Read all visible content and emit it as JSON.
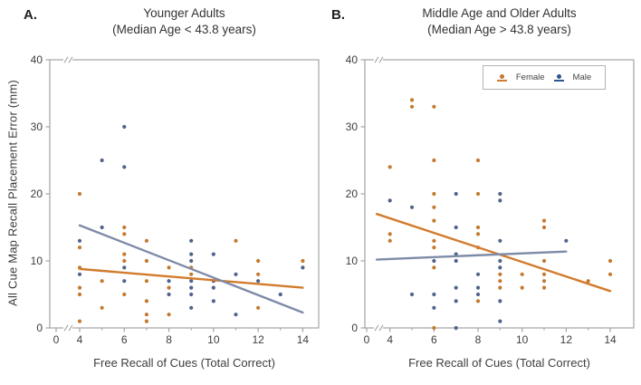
{
  "figure": {
    "ylabel": "All Cue Map Recall Placement Error (mm)",
    "xlabel": "Free Recall of Cues (Total Correct)"
  },
  "chart_data": {
    "type": "scatter",
    "ylabel": "All Cue Map Recall Placement Error (mm)",
    "xlabel": "Free Recall of Cues (Total Correct)",
    "ylim": [
      0,
      40
    ],
    "y_ticks": [
      0,
      10,
      20,
      30,
      40
    ],
    "x_ticks_major": [
      0,
      4,
      6,
      8,
      10,
      12,
      14
    ],
    "x_ticks_minor": [
      5,
      7,
      9,
      11,
      13
    ],
    "axis_break_between_0_and_4": true,
    "colors": {
      "female_point": "#c4792f",
      "female_line": "#d27b2c",
      "male_point": "#51628c",
      "male_line": "#7e8ba8",
      "axis": "#a3a3a3",
      "text": "#3d3d3d"
    },
    "legend": {
      "items": [
        "Female",
        "Male"
      ],
      "position": "top-right of panel B"
    },
    "panels": [
      {
        "id": "A",
        "label": "A.",
        "title_line1": "Younger Adults",
        "title_line2": "(Median Age < 43.8 years)",
        "series": [
          {
            "name": "Female",
            "points": [
              [
                4,
                20
              ],
              [
                4,
                12
              ],
              [
                4,
                9
              ],
              [
                4,
                6
              ],
              [
                4,
                5
              ],
              [
                4,
                1
              ],
              [
                5,
                7
              ],
              [
                5,
                3
              ],
              [
                6,
                15
              ],
              [
                6,
                14
              ],
              [
                6,
                11
              ],
              [
                6,
                10
              ],
              [
                6,
                5
              ],
              [
                7,
                13
              ],
              [
                7,
                10
              ],
              [
                7,
                7
              ],
              [
                7,
                4
              ],
              [
                7,
                2
              ],
              [
                7,
                1
              ],
              [
                8,
                9
              ],
              [
                8,
                6
              ],
              [
                8,
                2
              ],
              [
                9,
                9
              ],
              [
                9,
                8
              ],
              [
                11,
                13
              ],
              [
                12,
                10
              ],
              [
                12,
                8
              ],
              [
                12,
                3
              ],
              [
                14,
                10
              ]
            ],
            "trend": {
              "x1": 4,
              "y1": 8.8,
              "x2": 14,
              "y2": 6.0
            }
          },
          {
            "name": "Male",
            "points": [
              [
                4,
                13
              ],
              [
                4,
                8
              ],
              [
                5,
                25
              ],
              [
                5,
                15
              ],
              [
                6,
                30
              ],
              [
                6,
                24
              ],
              [
                6,
                9
              ],
              [
                6,
                7
              ],
              [
                8,
                7
              ],
              [
                8,
                5
              ],
              [
                9,
                13
              ],
              [
                9,
                11
              ],
              [
                9,
                10
              ],
              [
                9,
                7
              ],
              [
                9,
                6
              ],
              [
                9,
                5
              ],
              [
                9,
                3
              ],
              [
                10,
                11
              ],
              [
                10,
                7
              ],
              [
                10,
                6
              ],
              [
                10,
                4
              ],
              [
                11,
                8
              ],
              [
                11,
                2
              ],
              [
                12,
                7
              ],
              [
                13,
                5
              ],
              [
                14,
                9
              ]
            ],
            "trend": {
              "x1": 4,
              "y1": 15.3,
              "x2": 14,
              "y2": 2.3
            }
          }
        ]
      },
      {
        "id": "B",
        "label": "B.",
        "title_line1": "Middle Age and Older Adults",
        "title_line2": "(Median Age > 43.8 years)",
        "series": [
          {
            "name": "Female",
            "points": [
              [
                4,
                24
              ],
              [
                4,
                14
              ],
              [
                4,
                13
              ],
              [
                5,
                34
              ],
              [
                5,
                33
              ],
              [
                6,
                33
              ],
              [
                6,
                25
              ],
              [
                6,
                20
              ],
              [
                6,
                18
              ],
              [
                6,
                16
              ],
              [
                6,
                13
              ],
              [
                6,
                12
              ],
              [
                6,
                9
              ],
              [
                6,
                0
              ],
              [
                8,
                25
              ],
              [
                8,
                20
              ],
              [
                8,
                15
              ],
              [
                8,
                14
              ],
              [
                8,
                12
              ],
              [
                8,
                4
              ],
              [
                9,
                8
              ],
              [
                9,
                7
              ],
              [
                9,
                6
              ],
              [
                10,
                8
              ],
              [
                10,
                6
              ],
              [
                11,
                16
              ],
              [
                11,
                15
              ],
              [
                11,
                10
              ],
              [
                11,
                8
              ],
              [
                11,
                7
              ],
              [
                11,
                6
              ],
              [
                13,
                7
              ],
              [
                14,
                10
              ],
              [
                14,
                8
              ]
            ],
            "trend": {
              "x1": 3.4,
              "y1": 17.0,
              "x2": 14,
              "y2": 5.5
            }
          },
          {
            "name": "Male",
            "points": [
              [
                4,
                19
              ],
              [
                5,
                18
              ],
              [
                5,
                5
              ],
              [
                6,
                10
              ],
              [
                6,
                5
              ],
              [
                6,
                3
              ],
              [
                7,
                20
              ],
              [
                7,
                15
              ],
              [
                7,
                11
              ],
              [
                7,
                10
              ],
              [
                7,
                6
              ],
              [
                7,
                4
              ],
              [
                7,
                0
              ],
              [
                8,
                8
              ],
              [
                8,
                6
              ],
              [
                8,
                5
              ],
              [
                9,
                20
              ],
              [
                9,
                19
              ],
              [
                9,
                13
              ],
              [
                9,
                10
              ],
              [
                9,
                9
              ],
              [
                9,
                4
              ],
              [
                9,
                1
              ],
              [
                12,
                13
              ]
            ],
            "trend": {
              "x1": 3.4,
              "y1": 10.2,
              "x2": 12,
              "y2": 11.4
            }
          }
        ]
      }
    ]
  }
}
